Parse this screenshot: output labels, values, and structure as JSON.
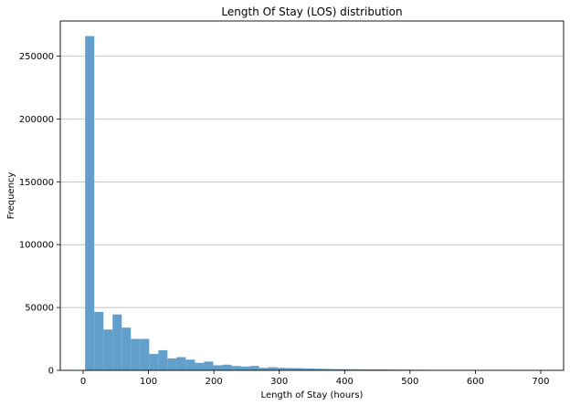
{
  "chart_data": {
    "type": "bar",
    "title": "Length Of Stay (LOS) distribution",
    "xlabel": "Length of Stay (hours)",
    "ylabel": "Frequency",
    "xlim": [
      -35,
      735
    ],
    "ylim": [
      0,
      278000
    ],
    "x_ticks": [
      0,
      100,
      200,
      300,
      400,
      500,
      600,
      700
    ],
    "x_tick_labels": [
      "0",
      "100",
      "200",
      "300",
      "400",
      "500",
      "600",
      "700"
    ],
    "y_ticks": [
      0,
      50000,
      100000,
      150000,
      200000,
      250000
    ],
    "y_tick_labels": [
      "0",
      "50000",
      "100000",
      "150000",
      "200000",
      "250000"
    ],
    "grid": "horizontal",
    "bar_color": "#629fca",
    "bin_edges": [
      3,
      17,
      31,
      45,
      59,
      73,
      87,
      101,
      115,
      129,
      143,
      157,
      171,
      185,
      199,
      213,
      227,
      241,
      255,
      269,
      283,
      297,
      311,
      325,
      339,
      353,
      367,
      381,
      395,
      409,
      423,
      437,
      451,
      465,
      479,
      493,
      507,
      521,
      535,
      549,
      563,
      577,
      591,
      605,
      619,
      633,
      647,
      661,
      675,
      689,
      703
    ],
    "values": [
      266000,
      46500,
      32500,
      44500,
      34000,
      25000,
      25000,
      13000,
      16000,
      9500,
      10500,
      8500,
      6000,
      7000,
      4000,
      4500,
      3500,
      3000,
      3500,
      2000,
      2500,
      2000,
      1800,
      1700,
      1500,
      1300,
      1100,
      1000,
      900,
      900,
      800,
      700,
      700,
      600,
      550,
      500,
      450,
      400,
      380,
      350,
      320,
      300,
      280,
      260,
      240,
      220,
      200,
      180,
      170,
      160
    ]
  }
}
